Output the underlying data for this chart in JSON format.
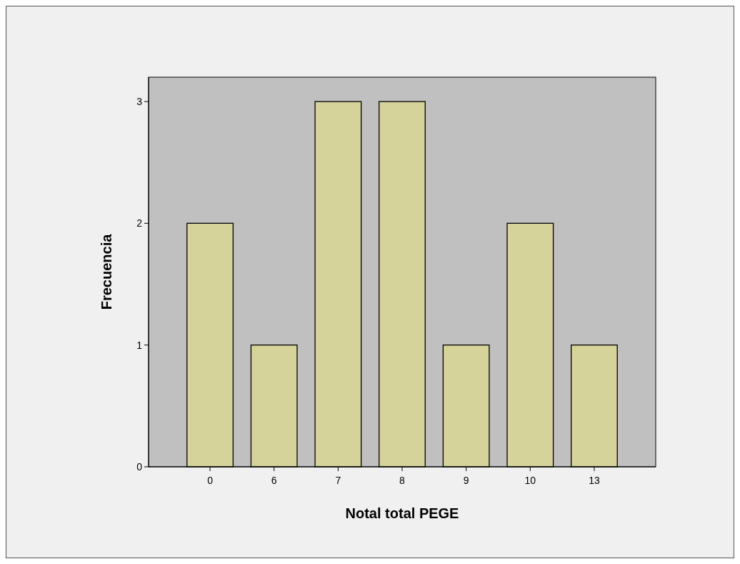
{
  "chart_data": {
    "type": "bar",
    "xlabel": "Notal total PEGE",
    "ylabel": "Frecuencia",
    "categories": [
      "0",
      "6",
      "7",
      "8",
      "9",
      "10",
      "13"
    ],
    "values": [
      2,
      1,
      3,
      3,
      1,
      2,
      1
    ],
    "color": "#d6d39a",
    "ylim": [
      0,
      3.2
    ],
    "yticks": [
      0,
      1,
      2,
      3
    ],
    "grid": false
  }
}
